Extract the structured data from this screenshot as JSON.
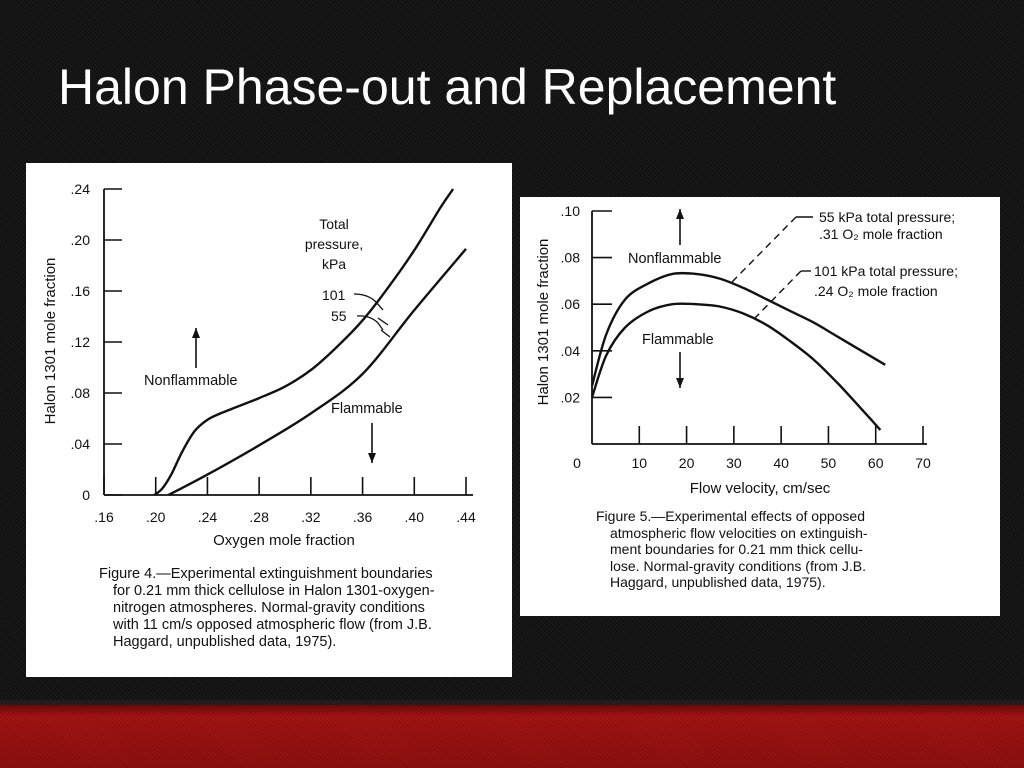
{
  "slide": {
    "title": "Halon Phase-out and Replacement",
    "colors": {
      "background": "#141414",
      "title": "#ffffff",
      "panel": "#ffffff",
      "footer": "#9b1111",
      "ink": "#111111"
    }
  },
  "chart_data": [
    {
      "type": "line",
      "xlabel": "Oxygen mole fraction",
      "ylabel": "Halon 1301 mole fraction",
      "xlim": [
        0.16,
        0.44
      ],
      "ylim": [
        0,
        0.24
      ],
      "x_ticks": [
        ".16",
        ".20",
        ".24",
        ".28",
        ".32",
        ".36",
        ".40",
        ".44"
      ],
      "y_ticks": [
        "0",
        ".04",
        ".08",
        ".12",
        ".16",
        ".20",
        ".24"
      ],
      "legend_title": [
        "Total",
        "pressure,",
        "kPa"
      ],
      "annotations": [
        "Nonflammable",
        "Flammable"
      ],
      "series": [
        {
          "name": "101",
          "x": [
            0.199,
            0.205,
            0.212,
            0.22,
            0.23,
            0.24,
            0.25,
            0.26,
            0.27,
            0.28,
            0.3,
            0.32,
            0.34,
            0.36,
            0.38,
            0.4,
            0.42,
            0.43
          ],
          "y": [
            0.0,
            0.005,
            0.016,
            0.033,
            0.05,
            0.059,
            0.064,
            0.068,
            0.072,
            0.076,
            0.085,
            0.098,
            0.116,
            0.137,
            0.163,
            0.192,
            0.225,
            0.24
          ]
        },
        {
          "name": "55",
          "x": [
            0.21,
            0.24,
            0.28,
            0.32,
            0.36,
            0.4,
            0.44
          ],
          "y": [
            0.0,
            0.016,
            0.039,
            0.064,
            0.095,
            0.145,
            0.193
          ]
        }
      ],
      "caption": [
        "Figure 4.—Experimental extinguishment boundaries",
        "for 0.21 mm thick cellulose in Halon 1301-oxygen-",
        "nitrogen atmospheres.  Normal-gravity conditions",
        "with 11 cm/s opposed atmospheric flow (from J.B.",
        "Haggard, unpublished data, 1975)."
      ]
    },
    {
      "type": "line",
      "xlabel": "Flow velocity, cm/sec",
      "ylabel": "Halon 1301 mole fraction",
      "xlim": [
        0,
        70
      ],
      "ylim": [
        0,
        0.1
      ],
      "x_ticks": [
        "0",
        "10",
        "20",
        "30",
        "40",
        "50",
        "60",
        "70"
      ],
      "y_ticks": [
        ".02",
        ".04",
        ".06",
        ".08",
        ".10"
      ],
      "annotations": [
        "Nonflammable",
        "Flammable"
      ],
      "series": [
        {
          "name": "55 kPa total pressure;",
          "label2": ".31 O₂ mole fraction",
          "x": [
            0,
            3,
            7,
            12,
            17,
            22,
            27,
            32,
            37,
            42,
            47,
            52,
            57,
            62
          ],
          "y": [
            0.025,
            0.047,
            0.062,
            0.069,
            0.073,
            0.073,
            0.071,
            0.067,
            0.062,
            0.057,
            0.052,
            0.046,
            0.04,
            0.034
          ]
        },
        {
          "name": "101 kPa total pressure;",
          "label2": ".24 O₂ mole fraction",
          "x": [
            0,
            3,
            7,
            12,
            17,
            22,
            27,
            32,
            37,
            42,
            47,
            52,
            57,
            61
          ],
          "y": [
            0.02,
            0.038,
            0.05,
            0.057,
            0.06,
            0.06,
            0.059,
            0.056,
            0.051,
            0.044,
            0.036,
            0.026,
            0.015,
            0.006
          ]
        }
      ],
      "caption": [
        "Figure 5.—Experimental effects of opposed",
        "atmospheric flow velocities on extinguish-",
        "ment boundaries for 0.21 mm thick cellu-",
        "lose.  Normal-gravity conditions (from J.B.",
        "Haggard, unpublished data, 1975)."
      ]
    }
  ]
}
